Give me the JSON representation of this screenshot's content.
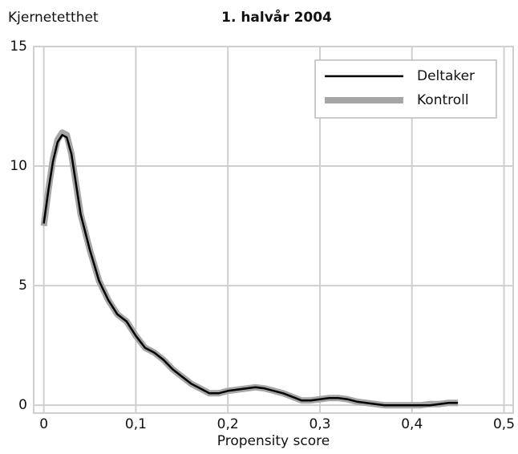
{
  "chart_data": {
    "type": "line",
    "title": "1. halvår 2004",
    "y_label": "Kjernetetthet",
    "x_label": "Propensity score",
    "x": [
      0,
      0.005,
      0.01,
      0.015,
      0.02,
      0.025,
      0.03,
      0.04,
      0.05,
      0.06,
      0.07,
      0.08,
      0.09,
      0.1,
      0.11,
      0.12,
      0.13,
      0.14,
      0.15,
      0.16,
      0.17,
      0.18,
      0.19,
      0.2,
      0.21,
      0.22,
      0.23,
      0.24,
      0.25,
      0.26,
      0.27,
      0.28,
      0.29,
      0.3,
      0.31,
      0.32,
      0.33,
      0.34,
      0.35,
      0.36,
      0.37,
      0.38,
      0.39,
      0.4,
      0.41,
      0.42,
      0.43,
      0.44,
      0.45
    ],
    "series": [
      {
        "name": "Kontroll",
        "color": "#a6a6a6",
        "values": [
          7.5,
          9.0,
          10.3,
          11.1,
          11.4,
          11.3,
          10.5,
          8.0,
          6.5,
          5.2,
          4.4,
          3.8,
          3.5,
          2.9,
          2.4,
          2.2,
          1.9,
          1.5,
          1.2,
          0.9,
          0.7,
          0.5,
          0.5,
          0.6,
          0.65,
          0.7,
          0.75,
          0.7,
          0.6,
          0.5,
          0.35,
          0.2,
          0.2,
          0.25,
          0.3,
          0.3,
          0.25,
          0.15,
          0.1,
          0.05,
          0.0,
          0.0,
          0.0,
          0.0,
          0.0,
          0.05,
          0.05,
          0.1,
          0.1
        ]
      },
      {
        "name": "Deltaker",
        "color": "#000000",
        "values": [
          7.6,
          9.0,
          10.2,
          11.0,
          11.3,
          11.2,
          10.5,
          8.0,
          6.5,
          5.2,
          4.4,
          3.8,
          3.5,
          2.9,
          2.4,
          2.2,
          1.9,
          1.5,
          1.2,
          0.9,
          0.7,
          0.5,
          0.5,
          0.6,
          0.65,
          0.7,
          0.75,
          0.7,
          0.6,
          0.5,
          0.35,
          0.2,
          0.2,
          0.25,
          0.3,
          0.3,
          0.25,
          0.15,
          0.1,
          0.05,
          0.0,
          0.0,
          0.0,
          0.0,
          0.0,
          0.0,
          0.05,
          0.1,
          0.1
        ]
      }
    ],
    "xlim": [
      -0.011,
      0.51
    ],
    "ylim": [
      -0.33,
      15
    ],
    "xticks": [
      0,
      {
        "value": 0.1,
        "label": "0,1"
      },
      {
        "value": 0.2,
        "label": "0,2"
      },
      {
        "value": 0.3,
        "label": "0,3"
      },
      {
        "value": 0.4,
        "label": "0,4"
      },
      {
        "value": 0.5,
        "label": "0,5"
      }
    ],
    "yticks": [
      0,
      5,
      10,
      15
    ],
    "grid": true,
    "legend": "upper right"
  }
}
